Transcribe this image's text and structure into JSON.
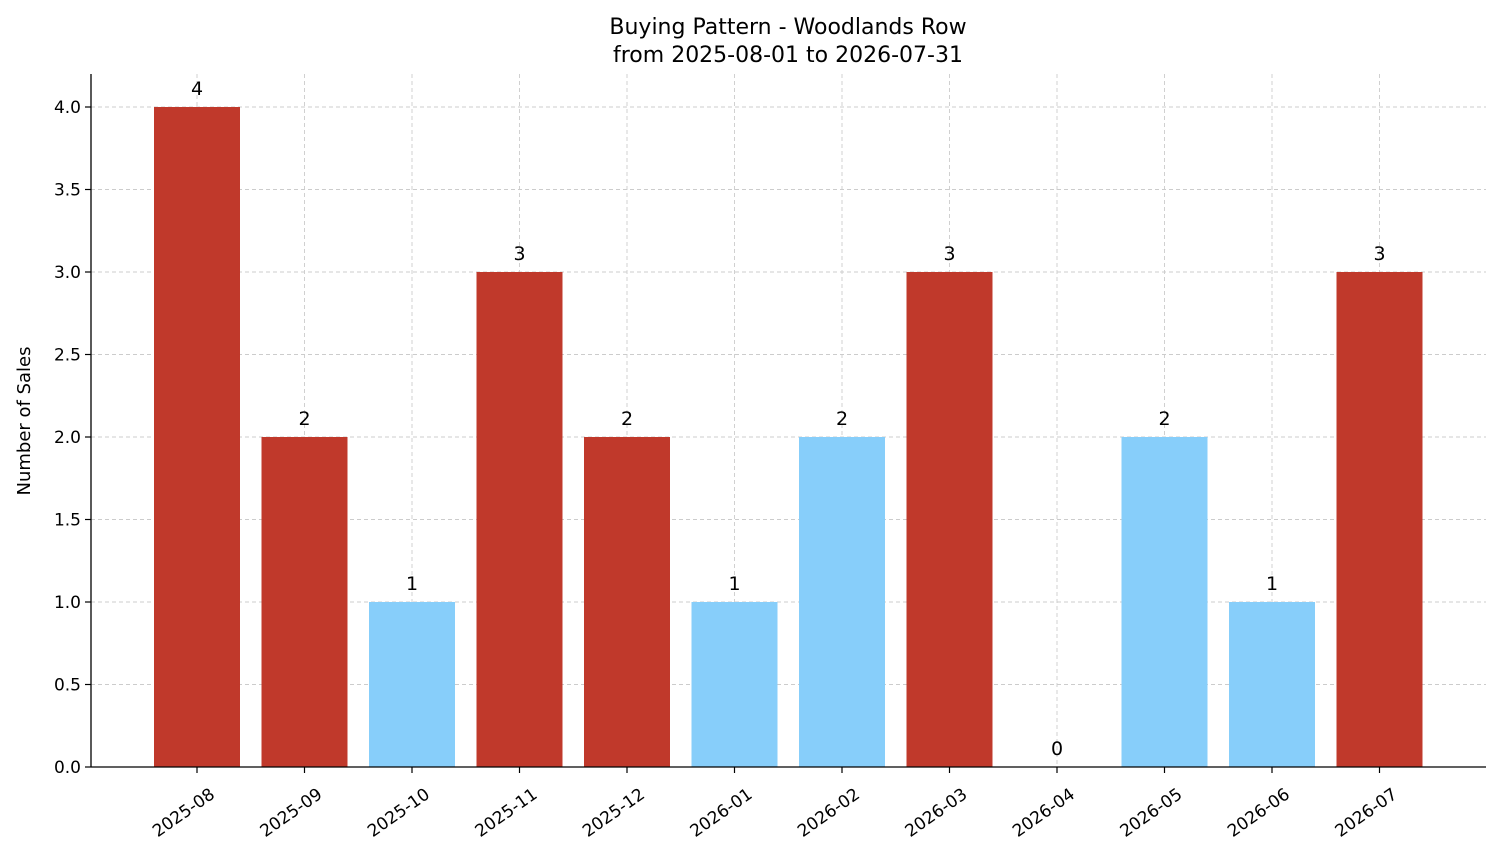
{
  "chart_data": {
    "type": "bar",
    "title": "Buying Pattern - Woodlands Row",
    "subtitle": "from 2025-08-01 to 2026-07-31",
    "xlabel": "",
    "ylabel": "Number of Sales",
    "ylim": [
      0,
      4.2
    ],
    "yticks": [
      "0.0",
      "0.5",
      "1.0",
      "1.5",
      "2.0",
      "2.5",
      "3.0",
      "3.5",
      "4.0"
    ],
    "categories": [
      "2025-08",
      "2025-09",
      "2025-10",
      "2025-11",
      "2025-12",
      "2026-01",
      "2026-02",
      "2026-03",
      "2026-04",
      "2026-05",
      "2026-06",
      "2026-07"
    ],
    "values": [
      4,
      2,
      1,
      3,
      2,
      1,
      2,
      3,
      0,
      2,
      1,
      3
    ],
    "bar_colors": [
      "#c0392b",
      "#c0392b",
      "#87cefa",
      "#c0392b",
      "#c0392b",
      "#87cefa",
      "#87cefa",
      "#c0392b",
      "#87cefa",
      "#87cefa",
      "#87cefa",
      "#c0392b"
    ],
    "grid": true,
    "x_tick_rotation": "rotated"
  }
}
